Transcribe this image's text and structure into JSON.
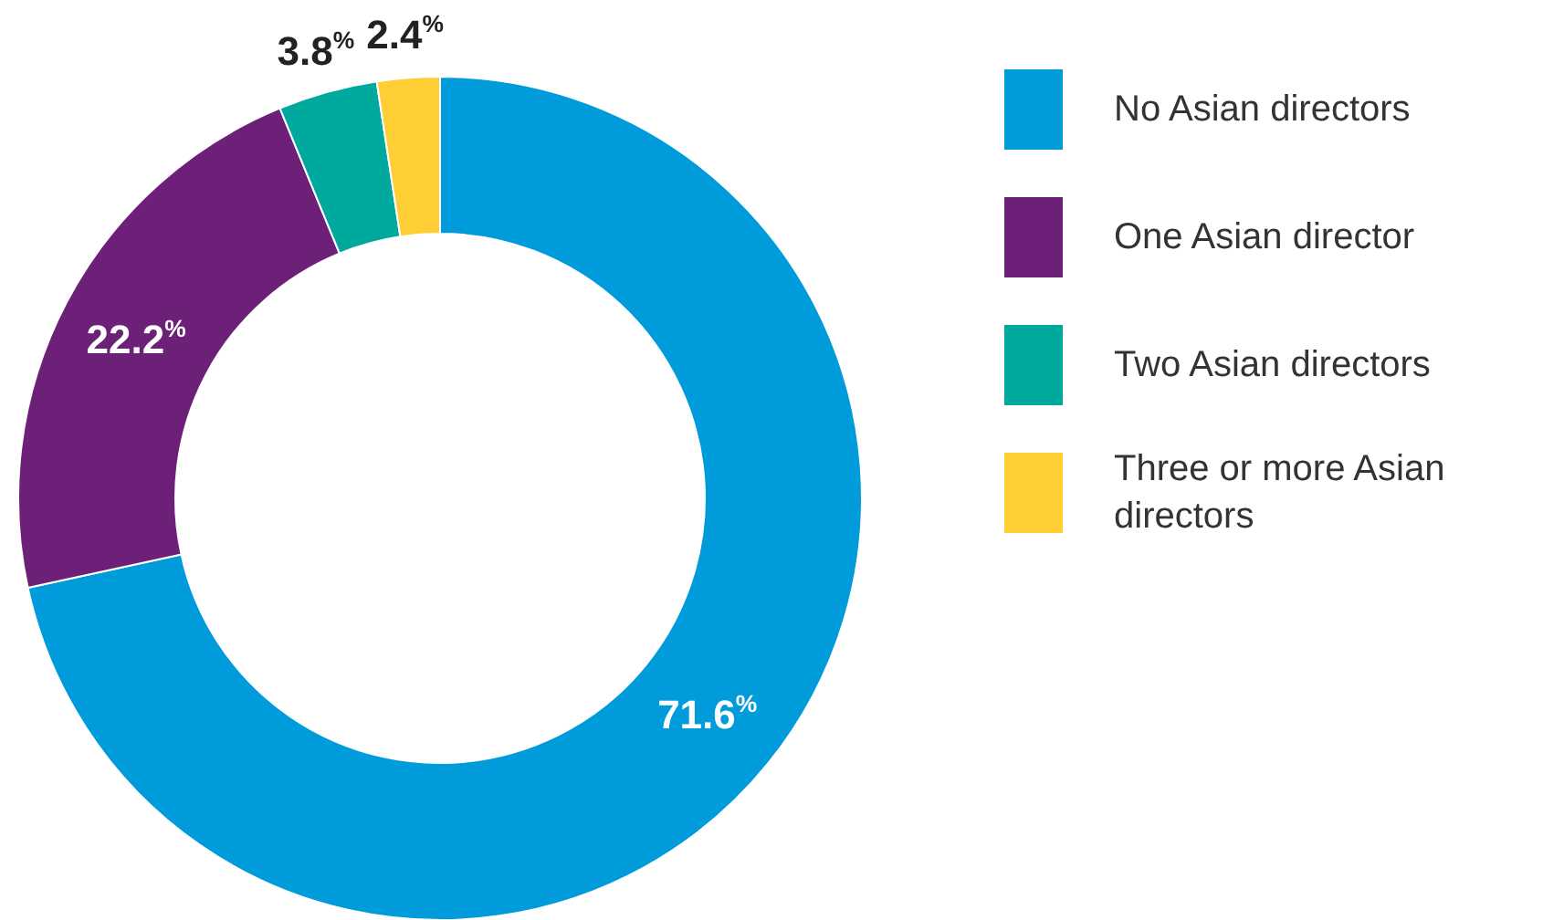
{
  "chart_data": {
    "type": "donut",
    "categories": [
      "No Asian directors",
      "One Asian director",
      "Two Asian directors",
      "Three or more Asian directors"
    ],
    "values": [
      71.6,
      22.2,
      3.8,
      2.4
    ],
    "colors": [
      "#009bdb",
      "#6d2077",
      "#00a99d",
      "#ffcd34"
    ],
    "value_labels": [
      "71.6$^{%}$",
      "22.2$^{%}$",
      "3.8$^{%}$",
      "2.4$^{%}$"
    ],
    "legend": "right"
  }
}
